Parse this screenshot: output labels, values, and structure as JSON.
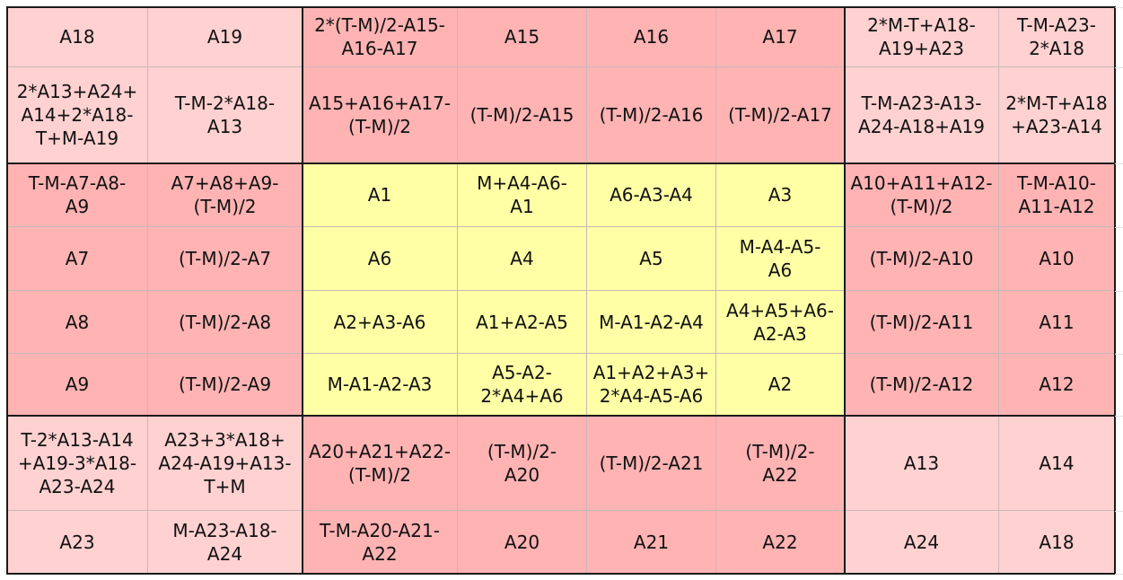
{
  "colors": {
    "light_pink": "#ffd1d1",
    "salmon": "#ffb3b3",
    "yellow": "#ffffa5"
  },
  "rows": [
    [
      {
        "t": "A18",
        "c": "p"
      },
      {
        "t": "A19",
        "c": "p"
      },
      {
        "t": "2*(T-M)/2-A15-\nA16-A17",
        "c": "s"
      },
      {
        "t": "A15",
        "c": "s"
      },
      {
        "t": "A16",
        "c": "s"
      },
      {
        "t": "A17",
        "c": "s"
      },
      {
        "t": "2*M-T+A18-\nA19+A23",
        "c": "p"
      },
      {
        "t": "T-M-A23-\n2*A18",
        "c": "p"
      }
    ],
    [
      {
        "t": "2*A13+A24+\nA14+2*A18-\nT+M-A19",
        "c": "p"
      },
      {
        "t": "T-M-2*A18-\nA13",
        "c": "p"
      },
      {
        "t": "A15+A16+A17-\n(T-M)/2",
        "c": "s"
      },
      {
        "t": "(T-M)/2-A15",
        "c": "s"
      },
      {
        "t": "(T-M)/2-A16",
        "c": "s"
      },
      {
        "t": "(T-M)/2-A17",
        "c": "s"
      },
      {
        "t": "T-M-A23-A13-\nA24-A18+A19",
        "c": "p"
      },
      {
        "t": "2*M-T+A18\n+A23-A14",
        "c": "p"
      }
    ],
    [
      {
        "t": "T-M-A7-A8-\nA9",
        "c": "s"
      },
      {
        "t": "A7+A8+A9-\n(T-M)/2",
        "c": "s"
      },
      {
        "t": "A1",
        "c": "y"
      },
      {
        "t": "M+A4-A6-\nA1",
        "c": "y"
      },
      {
        "t": "A6-A3-A4",
        "c": "y"
      },
      {
        "t": "A3",
        "c": "y"
      },
      {
        "t": "A10+A11+A12-\n(T-M)/2",
        "c": "s"
      },
      {
        "t": "T-M-A10-\nA11-A12",
        "c": "s"
      }
    ],
    [
      {
        "t": "A7",
        "c": "s"
      },
      {
        "t": "(T-M)/2-A7",
        "c": "s"
      },
      {
        "t": "A6",
        "c": "y"
      },
      {
        "t": "A4",
        "c": "y"
      },
      {
        "t": "A5",
        "c": "y"
      },
      {
        "t": "M-A4-A5-\nA6",
        "c": "y"
      },
      {
        "t": "(T-M)/2-A10",
        "c": "s"
      },
      {
        "t": "A10",
        "c": "s"
      }
    ],
    [
      {
        "t": "A8",
        "c": "s"
      },
      {
        "t": "(T-M)/2-A8",
        "c": "s"
      },
      {
        "t": "A2+A3-A6",
        "c": "y"
      },
      {
        "t": "A1+A2-A5",
        "c": "y"
      },
      {
        "t": "M-A1-A2-A4",
        "c": "y"
      },
      {
        "t": "A4+A5+A6-\nA2-A3",
        "c": "y"
      },
      {
        "t": "(T-M)/2-A11",
        "c": "s"
      },
      {
        "t": "A11",
        "c": "s"
      }
    ],
    [
      {
        "t": "A9",
        "c": "s"
      },
      {
        "t": "(T-M)/2-A9",
        "c": "s"
      },
      {
        "t": "M-A1-A2-A3",
        "c": "y"
      },
      {
        "t": "A5-A2-\n2*A4+A6",
        "c": "y"
      },
      {
        "t": "A1+A2+A3+\n2*A4-A5-A6",
        "c": "y"
      },
      {
        "t": "A2",
        "c": "y"
      },
      {
        "t": "(T-M)/2-A12",
        "c": "s"
      },
      {
        "t": "A12",
        "c": "s"
      }
    ],
    [
      {
        "t": "T-2*A13-A14\n+A19-3*A18-\nA23-A24",
        "c": "p"
      },
      {
        "t": "A23+3*A18+\nA24-A19+A13-\nT+M",
        "c": "p"
      },
      {
        "t": "A20+A21+A22-\n(T-M)/2",
        "c": "s"
      },
      {
        "t": "(T-M)/2-\nA20",
        "c": "s"
      },
      {
        "t": "(T-M)/2-A21",
        "c": "s"
      },
      {
        "t": "(T-M)/2-\nA22",
        "c": "s"
      },
      {
        "t": "A13",
        "c": "p"
      },
      {
        "t": "A14",
        "c": "p"
      }
    ],
    [
      {
        "t": "A23",
        "c": "p"
      },
      {
        "t": "M-A23-A18-\nA24",
        "c": "p"
      },
      {
        "t": "T-M-A20-A21-\nA22",
        "c": "s"
      },
      {
        "t": "A20",
        "c": "s"
      },
      {
        "t": "A21",
        "c": "s"
      },
      {
        "t": "A22",
        "c": "s"
      },
      {
        "t": "A24",
        "c": "p"
      },
      {
        "t": "A18",
        "c": "p"
      }
    ]
  ]
}
